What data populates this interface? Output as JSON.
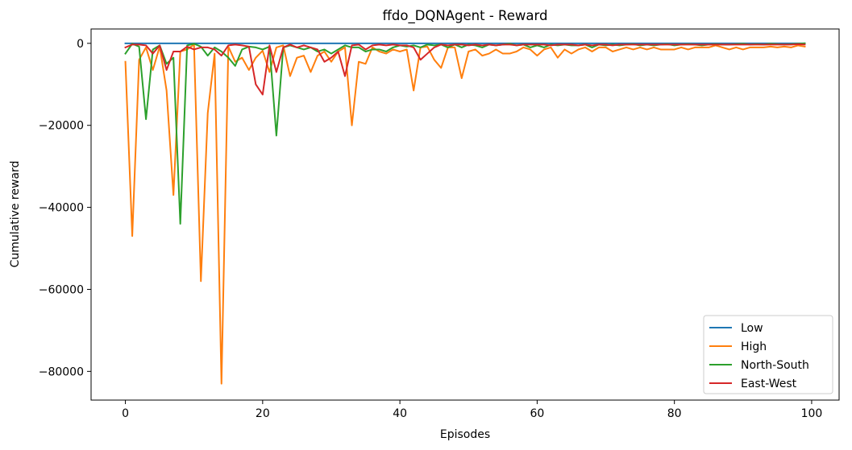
{
  "chart_data": {
    "type": "line",
    "title": "ffdo_DQNAgent - Reward",
    "xlabel": "Episodes",
    "ylabel": "Cumulative reward",
    "xlim": [
      -5,
      104
    ],
    "ylim": [
      -87000,
      3500
    ],
    "xticks": [
      0,
      20,
      40,
      60,
      80,
      100
    ],
    "yticks": [
      0,
      -20000,
      -40000,
      -60000,
      -80000
    ],
    "ytick_labels": [
      "0",
      "−20000",
      "−40000",
      "−60000",
      "−80000"
    ],
    "grid": false,
    "legend_position": "bottom-right",
    "series": [
      {
        "name": "Low",
        "color": "#1f77b4",
        "values": [
          0,
          0,
          0,
          0,
          0,
          0,
          0,
          0,
          0,
          0,
          0,
          0,
          0,
          0,
          0,
          0,
          0,
          0,
          0,
          0,
          0,
          0,
          0,
          0,
          0,
          0,
          0,
          0,
          0,
          0,
          0,
          0,
          0,
          0,
          0,
          0,
          0,
          0,
          0,
          0,
          0,
          0,
          0,
          0,
          0,
          0,
          0,
          0,
          0,
          0,
          0,
          0,
          0,
          0,
          0,
          0,
          0,
          0,
          0,
          0,
          0,
          0,
          0,
          0,
          0,
          0,
          0,
          0,
          0,
          0,
          0,
          0,
          0,
          0,
          0,
          0,
          0,
          0,
          0,
          0,
          0,
          0,
          0,
          0,
          0,
          0,
          0,
          0,
          0,
          0,
          0,
          0,
          0,
          0,
          0,
          0,
          0,
          0,
          0,
          0
        ]
      },
      {
        "name": "High",
        "color": "#ff7f0e",
        "values": [
          -4500,
          -47000,
          -4000,
          -1000,
          -6500,
          -800,
          -11500,
          -37000,
          -2000,
          -1500,
          -300,
          -58000,
          -17000,
          -2500,
          -83000,
          -800,
          -4500,
          -3500,
          -6500,
          -3500,
          -1800,
          -7000,
          -1000,
          -500,
          -8000,
          -3500,
          -3000,
          -7000,
          -3000,
          -2000,
          -4500,
          -2000,
          -1000,
          -20000,
          -4500,
          -5000,
          -1000,
          -2000,
          -2500,
          -1500,
          -2000,
          -1500,
          -11500,
          -1000,
          -800,
          -4000,
          -6000,
          -1000,
          -1000,
          -8500,
          -2000,
          -1500,
          -3000,
          -2500,
          -1500,
          -2500,
          -2500,
          -2000,
          -1000,
          -1500,
          -3000,
          -1500,
          -1000,
          -3500,
          -1500,
          -2500,
          -1500,
          -1000,
          -2000,
          -1000,
          -1000,
          -2000,
          -1500,
          -1000,
          -1500,
          -1000,
          -1500,
          -1000,
          -1500,
          -1500,
          -1500,
          -1000,
          -1500,
          -1000,
          -1000,
          -1000,
          -500,
          -1000,
          -1500,
          -1000,
          -1500,
          -1000,
          -1000,
          -1000,
          -800,
          -1000,
          -800,
          -1000,
          -500,
          -800
        ]
      },
      {
        "name": "North-South",
        "color": "#2ca02c",
        "values": [
          -2500,
          -100,
          -800,
          -18500,
          -1500,
          -500,
          -5000,
          -3500,
          -44000,
          -500,
          -100,
          -800,
          -3000,
          -1000,
          -2000,
          -3500,
          -5500,
          -1500,
          -800,
          -1000,
          -1500,
          -800,
          -22500,
          -1000,
          -500,
          -1000,
          -1500,
          -1000,
          -2000,
          -1500,
          -2500,
          -1500,
          -500,
          -1000,
          -1000,
          -2000,
          -1500,
          -1500,
          -2000,
          -1000,
          -500,
          -800,
          -500,
          -1000,
          -300,
          -500,
          -300,
          -1000,
          -300,
          -1000,
          -300,
          -500,
          -1000,
          -300,
          -500,
          -300,
          -100,
          -500,
          -300,
          -1000,
          -500,
          -1000,
          -300,
          -500,
          -300,
          -500,
          -500,
          -300,
          -1000,
          -300,
          -500,
          -300,
          -500,
          -300,
          -200,
          -500,
          -300,
          -500,
          -300,
          -200,
          -500,
          -300,
          -200,
          -300,
          -500,
          -300,
          -200,
          -300,
          -300,
          -200,
          -100,
          -300,
          -200,
          -300,
          -100,
          -200,
          -300,
          -200,
          -100,
          0
        ]
      },
      {
        "name": "East-West",
        "color": "#d62728",
        "values": [
          -1000,
          -300,
          -300,
          -500,
          -2500,
          -500,
          -6500,
          -2000,
          -2000,
          -800,
          -1500,
          -1000,
          -1000,
          -1500,
          -3000,
          -500,
          -300,
          -500,
          -800,
          -10000,
          -12500,
          -500,
          -7000,
          -1000,
          -300,
          -1000,
          -500,
          -1000,
          -1500,
          -4500,
          -3500,
          -2000,
          -8000,
          -500,
          -300,
          -1500,
          -500,
          -300,
          -500,
          -300,
          -500,
          -500,
          -1000,
          -4000,
          -2500,
          -1000,
          -300,
          -500,
          -300,
          -300,
          -500,
          -300,
          -500,
          -300,
          -500,
          -300,
          -300,
          -500,
          -300,
          -300,
          -300,
          -300,
          -500,
          -300,
          -300,
          -300,
          -500,
          -300,
          -500,
          -300,
          -300,
          -500,
          -300,
          -300,
          -300,
          -300,
          -300,
          -300,
          -300,
          -300,
          -300,
          -300,
          -300,
          -300,
          -300,
          -300,
          -300,
          -300,
          -300,
          -300,
          -300,
          -300,
          -300,
          -300,
          -300,
          -300,
          -300,
          -300,
          -200,
          -300
        ]
      }
    ]
  }
}
